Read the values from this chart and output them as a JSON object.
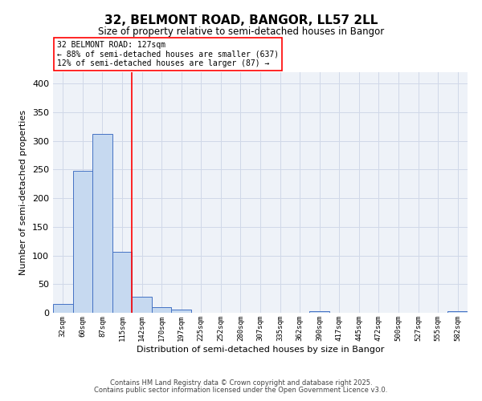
{
  "title": "32, BELMONT ROAD, BANGOR, LL57 2LL",
  "subtitle": "Size of property relative to semi-detached houses in Bangor",
  "xlabel": "Distribution of semi-detached houses by size in Bangor",
  "ylabel": "Number of semi-detached properties",
  "categories": [
    "32sqm",
    "60sqm",
    "87sqm",
    "115sqm",
    "142sqm",
    "170sqm",
    "197sqm",
    "225sqm",
    "252sqm",
    "280sqm",
    "307sqm",
    "335sqm",
    "362sqm",
    "390sqm",
    "417sqm",
    "445sqm",
    "472sqm",
    "500sqm",
    "527sqm",
    "555sqm",
    "582sqm"
  ],
  "values": [
    15,
    248,
    312,
    106,
    28,
    10,
    6,
    0,
    0,
    0,
    0,
    0,
    0,
    3,
    0,
    0,
    0,
    0,
    0,
    0,
    3
  ],
  "bar_color": "#c6d9f0",
  "bar_edge_color": "#4472c4",
  "red_line_x": 3.5,
  "ylim": [
    0,
    420
  ],
  "yticks": [
    0,
    50,
    100,
    150,
    200,
    250,
    300,
    350,
    400
  ],
  "annotation_title": "32 BELMONT ROAD: 127sqm",
  "annotation_line1": "← 88% of semi-detached houses are smaller (637)",
  "annotation_line2": "12% of semi-detached houses are larger (87) →",
  "footer1": "Contains HM Land Registry data © Crown copyright and database right 2025.",
  "footer2": "Contains public sector information licensed under the Open Government Licence v3.0.",
  "grid_color": "#d0d8e8",
  "background_color": "#eef2f8"
}
